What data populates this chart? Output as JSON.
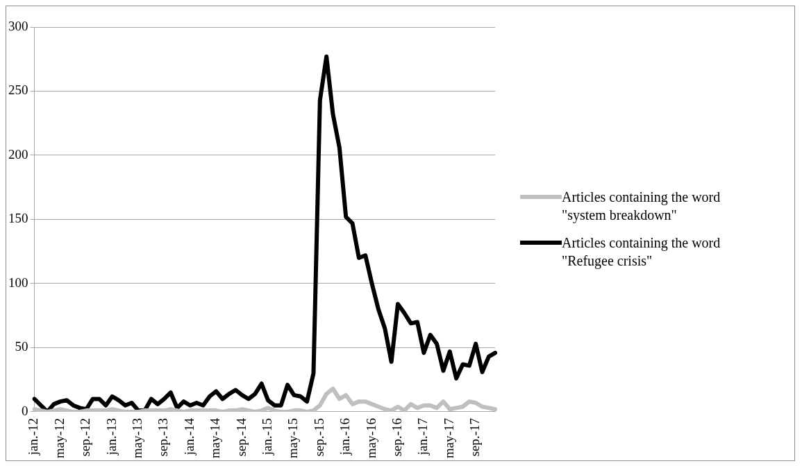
{
  "chart_data": {
    "type": "line",
    "categories": [
      "jan.-12",
      null,
      null,
      null,
      "may-12",
      null,
      null,
      null,
      "sep.-12",
      null,
      null,
      null,
      "jan.-13",
      null,
      null,
      null,
      "may-13",
      null,
      null,
      null,
      "sep.-13",
      null,
      null,
      null,
      "jan.-14",
      null,
      null,
      null,
      "may-14",
      null,
      null,
      null,
      "sep.-14",
      null,
      null,
      null,
      "jan.-15",
      null,
      null,
      null,
      "may-15",
      null,
      null,
      null,
      "sep.-15",
      null,
      null,
      null,
      "jan.-16",
      null,
      null,
      null,
      "may-16",
      null,
      null,
      null,
      "sep.-16",
      null,
      null,
      null,
      "jan.-17",
      null,
      null,
      null,
      "may-17",
      null,
      null,
      null,
      "sep.-17",
      null,
      null,
      null
    ],
    "series": [
      {
        "name": "Articles containing the word \"system breakdown\"",
        "color": "#bfbfbf",
        "values": [
          2,
          1,
          0,
          1,
          2,
          1,
          0,
          0,
          1,
          1,
          1,
          1,
          2,
          1,
          0,
          0,
          0,
          1,
          1,
          1,
          1,
          2,
          1,
          0,
          1,
          1,
          1,
          1,
          1,
          0,
          1,
          1,
          2,
          1,
          0,
          1,
          3,
          1,
          0,
          0,
          1,
          1,
          0,
          1,
          5,
          14,
          18,
          10,
          13,
          6,
          8,
          8,
          6,
          4,
          2,
          1,
          4,
          1,
          6,
          3,
          5,
          5,
          3,
          8,
          2,
          3,
          4,
          8,
          7,
          4,
          3,
          2
        ]
      },
      {
        "name": "Articles containing the word \"Refugee crisis\"",
        "color": "#000000",
        "values": [
          10,
          5,
          0,
          6,
          8,
          9,
          5,
          3,
          2,
          10,
          10,
          5,
          12,
          9,
          5,
          7,
          1,
          1,
          10,
          6,
          10,
          15,
          3,
          8,
          5,
          7,
          5,
          12,
          16,
          10,
          14,
          17,
          13,
          10,
          14,
          22,
          9,
          5,
          5,
          21,
          13,
          12,
          8,
          30,
          243,
          277,
          232,
          206,
          152,
          147,
          120,
          122,
          100,
          80,
          65,
          39,
          84,
          77,
          69,
          70,
          46,
          60,
          53,
          32,
          47,
          26,
          37,
          36,
          53,
          31,
          43,
          46
        ]
      }
    ],
    "ylim": [
      0,
      300
    ],
    "yticks": [
      0,
      50,
      100,
      150,
      200,
      250,
      300
    ],
    "grid": "y",
    "legend": "right",
    "marker": "none",
    "line_style": "solid"
  }
}
